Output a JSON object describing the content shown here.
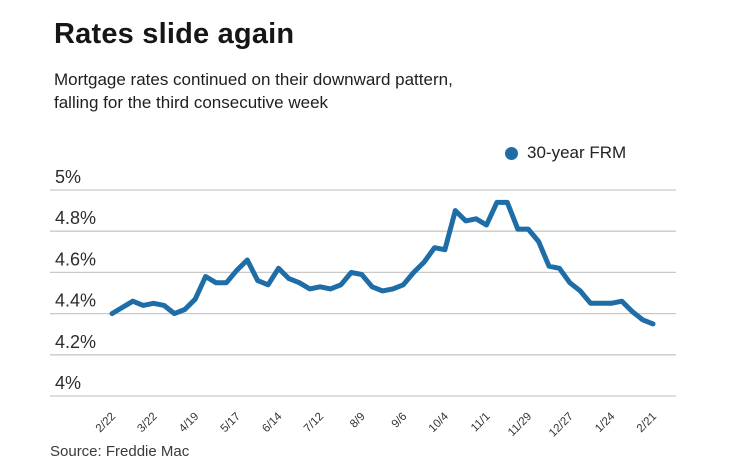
{
  "header": {
    "title": "Rates slide again",
    "subtitle_line1": "Mortgage rates continued on their downward pattern,",
    "subtitle_line2": "falling for the third consecutive week"
  },
  "legend": {
    "label": "30-year FRM",
    "marker_color": "#1f6da6"
  },
  "source": {
    "label": "Source: Freddie Mac"
  },
  "colors": {
    "line": "#1f6da6",
    "grid": "#c9c9c9",
    "y_tick_text": "#2c2c2c",
    "x_tick_text": "#333333"
  },
  "chart_data": {
    "type": "line",
    "title": "Rates slide again",
    "subtitle": "Mortgage rates continued on their downward pattern, falling for the third consecutive week",
    "legend_entries": [
      "30-year FRM"
    ],
    "legend_position": "top-right",
    "source": "Source: Freddie Mac",
    "grid": "horizontal-only",
    "ylim": [
      4,
      5
    ],
    "yticks": [
      4,
      4.2,
      4.4,
      4.6,
      4.8,
      5
    ],
    "ytick_labels": [
      "4%",
      "4.2%",
      "4.4%",
      "4.6%",
      "4.8%",
      "5%"
    ],
    "x_tick_indices": [
      0,
      4,
      8,
      12,
      16,
      20,
      24,
      28,
      32,
      36,
      40,
      44,
      48,
      52
    ],
    "x_tick_labels": [
      "2/22",
      "3/22",
      "4/19",
      "5/17",
      "6/14",
      "7/12",
      "8/9",
      "9/6",
      "10/4",
      "11/1",
      "11/29",
      "12/27",
      "1/24",
      "2/21"
    ],
    "series": [
      {
        "name": "30-year FRM",
        "values": [
          4.4,
          4.43,
          4.46,
          4.44,
          4.45,
          4.44,
          4.4,
          4.42,
          4.47,
          4.58,
          4.55,
          4.55,
          4.61,
          4.66,
          4.56,
          4.54,
          4.62,
          4.57,
          4.55,
          4.52,
          4.53,
          4.52,
          4.54,
          4.6,
          4.59,
          4.53,
          4.51,
          4.52,
          4.54,
          4.6,
          4.65,
          4.72,
          4.71,
          4.9,
          4.85,
          4.86,
          4.83,
          4.94,
          4.94,
          4.81,
          4.81,
          4.75,
          4.63,
          4.62,
          4.55,
          4.51,
          4.45,
          4.45,
          4.45,
          4.46,
          4.41,
          4.37,
          4.35
        ]
      }
    ]
  }
}
